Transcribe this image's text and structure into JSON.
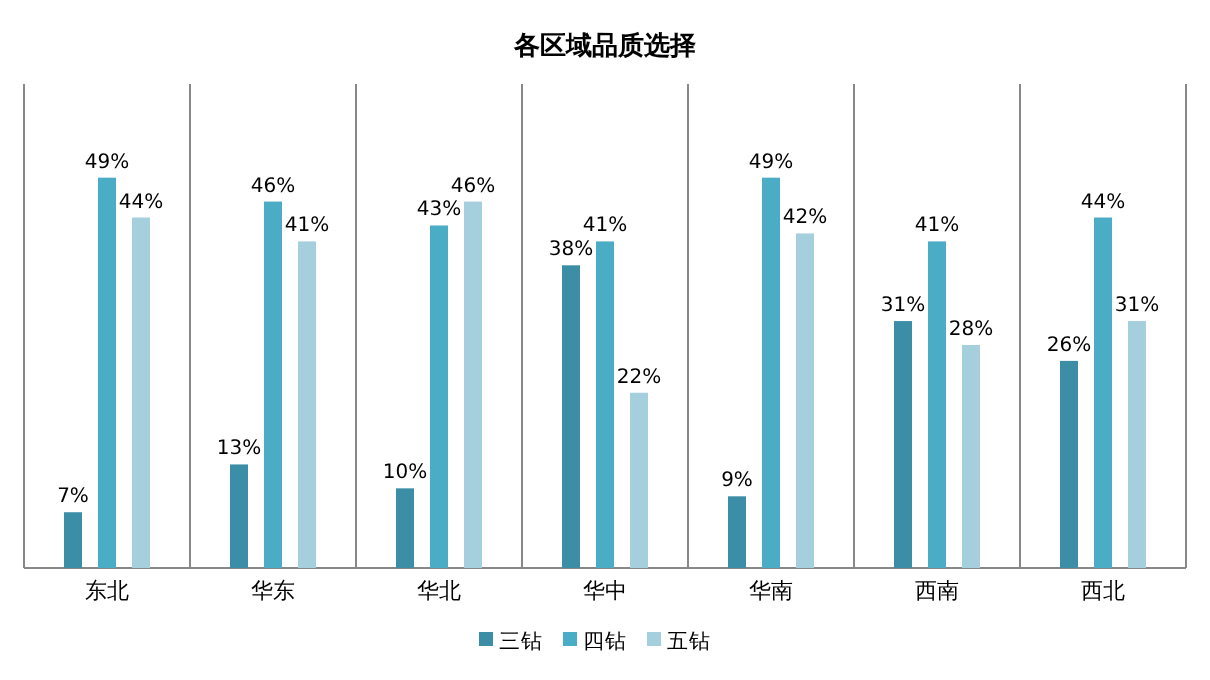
{
  "chart_data": {
    "type": "bar",
    "title": "各区域品质选择",
    "categories": [
      "东北",
      "华东",
      "华北",
      "华中",
      "华南",
      "西南",
      "西北"
    ],
    "series": [
      {
        "name": "三钻",
        "color": "#3b8ea5",
        "values": [
          7,
          13,
          10,
          38,
          9,
          31,
          26
        ],
        "value_labels": [
          "7%",
          "13%",
          "10%",
          "38%",
          "9%",
          "31%",
          "26%"
        ]
      },
      {
        "name": "四钻",
        "color": "#4bacc6",
        "values": [
          49,
          46,
          43,
          41,
          49,
          41,
          44
        ],
        "value_labels": [
          "49%",
          "46%",
          "43%",
          "41%",
          "49%",
          "41%",
          "44%"
        ]
      },
      {
        "name": "五钻",
        "color": "#a5cfdc",
        "values": [
          44,
          41,
          46,
          22,
          42,
          28,
          31
        ],
        "value_labels": [
          "44%",
          "41%",
          "46%",
          "22%",
          "42%",
          "28%",
          "31%"
        ]
      }
    ],
    "grid": "x",
    "legend": "bottom"
  }
}
